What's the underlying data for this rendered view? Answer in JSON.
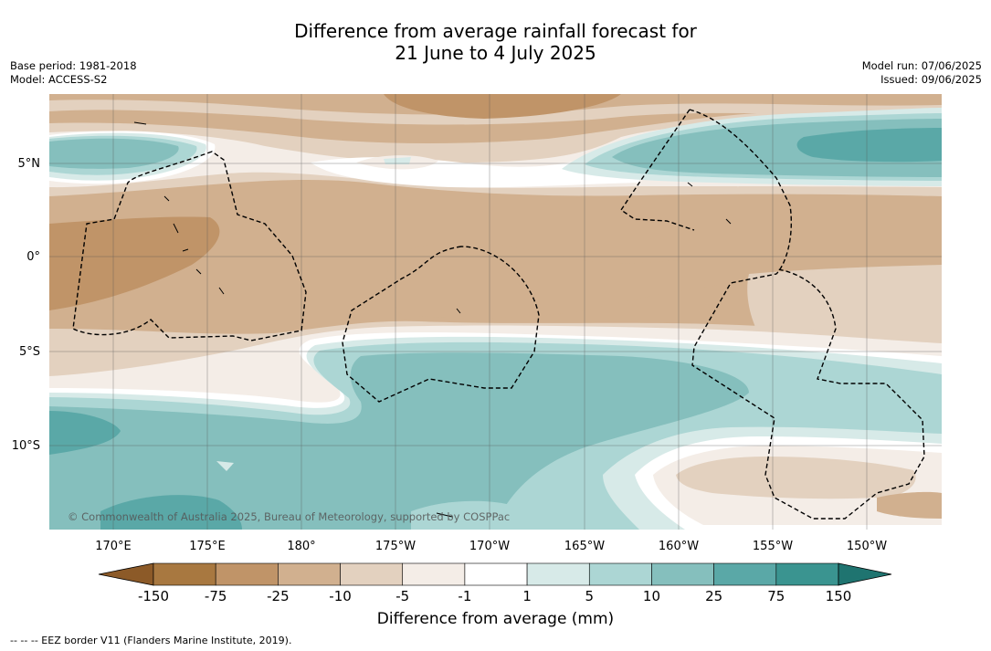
{
  "title_line1": "Difference from average rainfall forecast for",
  "title_line2": "21 June to 4 July 2025",
  "base_period": "Base period: 1981-2018",
  "model": "Model: ACCESS-S2",
  "model_run": "Model run: 07/06/2025",
  "issued": "Issued: 09/06/2025",
  "copyright": "© Commonwealth of Australia 2025, Bureau of Meteorology, supported by COSPPac",
  "lon_labels": [
    "170°E",
    "175°E",
    "180°",
    "175°W",
    "170°W",
    "165°W",
    "160°W",
    "155°W",
    "150°W"
  ],
  "lat_labels": [
    "5°N",
    "0°",
    "5°S",
    "10°S"
  ],
  "colorbar": {
    "title": "Difference from average (mm)",
    "tick_labels": [
      "-150",
      "-75",
      "-25",
      "-10",
      "-5",
      "-1",
      "1",
      "5",
      "10",
      "25",
      "75",
      "150"
    ],
    "colors": [
      "#8c5a28",
      "#a87840",
      "#c09468",
      "#d1b08f",
      "#e3d1bf",
      "#f4ede7",
      "#ffffff",
      "#d7eae8",
      "#acd6d4",
      "#85bfbd",
      "#5aa8a7",
      "#3a9490",
      "#1f7470"
    ]
  },
  "footer": "--  --  -- EEZ border V11 (Flanders Marine Institute, 2019)."
}
